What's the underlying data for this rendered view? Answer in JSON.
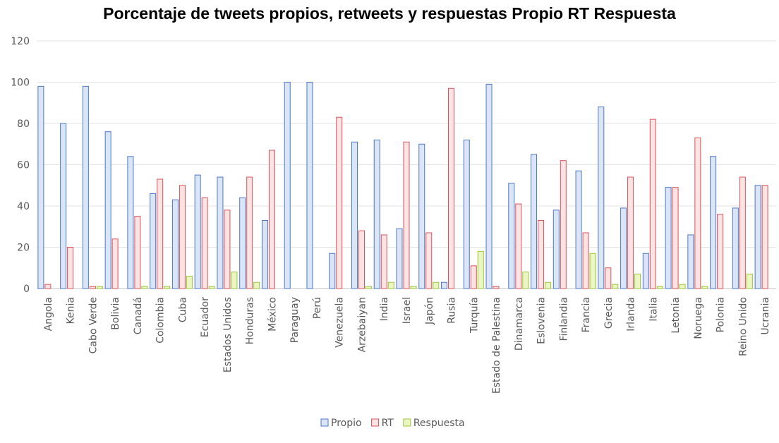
{
  "chart_data": {
    "type": "bar",
    "title": "Porcentaje de tweets propios, retweets y respuestas Propio RT Respuesta",
    "xlabel": "",
    "ylabel": "",
    "ylim": [
      0,
      120
    ],
    "yticks": [
      0,
      20,
      40,
      60,
      80,
      100,
      120
    ],
    "grid": true,
    "legend_position": "bottom",
    "categories": [
      "Angola",
      "Kenia",
      "Cabo Verde",
      "Bolivia",
      "Canadá",
      "Colombia",
      "Cuba",
      "Ecuador",
      "Estados Unidos",
      "Honduras",
      "México",
      "Paraguay",
      "Perú",
      "Venezuela",
      "Arzebaiyan",
      "India",
      "Israel",
      "Japón",
      "Rusia",
      "Turquía",
      "Estado de Palestina",
      "Dinamarca",
      "Eslovenia",
      "Finlandia",
      "Francia",
      "Grecia",
      "Irlanda",
      "Italia",
      "Letonia",
      "Noruega",
      "Polonia",
      "Reino Unido",
      "Ucrania"
    ],
    "series": [
      {
        "name": "Propio",
        "fill": "#dae6f8",
        "stroke": "#4f78c4",
        "values": [
          98,
          80,
          98,
          76,
          64,
          46,
          43,
          55,
          54,
          44,
          33,
          100,
          100,
          17,
          71,
          72,
          29,
          70,
          3,
          72,
          99,
          51,
          65,
          38,
          57,
          88,
          39,
          17,
          49,
          26,
          64,
          39,
          50
        ]
      },
      {
        "name": "RT",
        "fill": "#fde3e3",
        "stroke": "#d9545a",
        "values": [
          2,
          20,
          1,
          24,
          35,
          53,
          50,
          44,
          38,
          54,
          67,
          0,
          0,
          83,
          28,
          26,
          71,
          27,
          97,
          11,
          1,
          41,
          33,
          62,
          27,
          10,
          54,
          82,
          49,
          73,
          36,
          54,
          50
        ]
      },
      {
        "name": "Respuesta",
        "fill": "#eaf7c2",
        "stroke": "#9cc43e",
        "values": [
          0,
          0,
          1,
          0,
          1,
          1,
          6,
          1,
          8,
          3,
          0,
          0,
          0,
          0,
          1,
          3,
          1,
          3,
          0,
          18,
          0,
          8,
          3,
          0,
          17,
          2,
          7,
          1,
          2,
          1,
          0,
          7,
          0
        ]
      }
    ]
  }
}
